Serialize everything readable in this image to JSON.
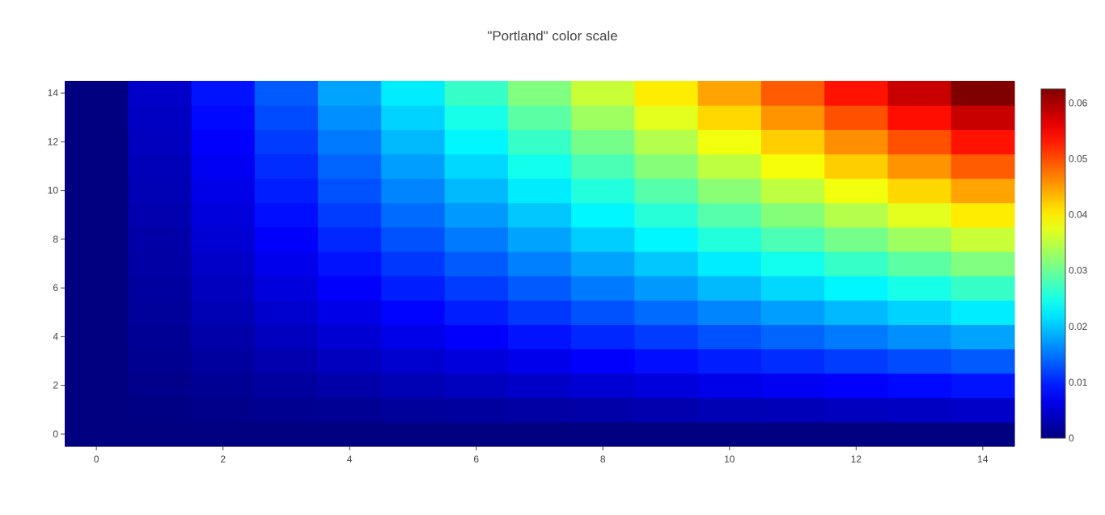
{
  "chart_data": {
    "type": "heatmap",
    "title": "\"Portland\" color scale",
    "xlabel": "",
    "ylabel": "",
    "x": [
      0,
      1,
      2,
      3,
      4,
      5,
      6,
      7,
      8,
      9,
      10,
      11,
      12,
      13,
      14
    ],
    "y": [
      0,
      1,
      2,
      3,
      4,
      5,
      6,
      7,
      8,
      9,
      10,
      11,
      12,
      13,
      14
    ],
    "x_ticks": [
      0,
      2,
      4,
      6,
      8,
      10,
      12,
      14
    ],
    "y_ticks": [
      0,
      2,
      4,
      6,
      8,
      10,
      12,
      14
    ],
    "x_tick_labels": [
      "0",
      "2",
      "4",
      "6",
      "8",
      "10",
      "12",
      "14"
    ],
    "y_tick_labels": [
      "0",
      "2",
      "4",
      "6",
      "8",
      "10",
      "12",
      "14"
    ],
    "xlim": [
      -0.5,
      14.5
    ],
    "ylim": [
      -0.5,
      14.5
    ],
    "zmin": 0,
    "zmax": 0.0625,
    "z_formula": "z = x * y / 3136 (values estimated from colors)",
    "colorscale": [
      [
        0.0,
        "#000080"
      ],
      [
        0.125,
        "#0000ff"
      ],
      [
        0.375,
        "#00ffff"
      ],
      [
        0.625,
        "#ffff00"
      ],
      [
        0.875,
        "#ff0000"
      ],
      [
        1.0,
        "#800000"
      ]
    ],
    "colorbar": {
      "ticks": [
        0,
        0.01,
        0.02,
        0.03,
        0.04,
        0.05,
        0.06
      ],
      "tick_labels": [
        "0",
        "0.01",
        "0.02",
        "0.03",
        "0.04",
        "0.05",
        "0.06"
      ]
    },
    "grid": false,
    "legend": "colorbar-right"
  }
}
